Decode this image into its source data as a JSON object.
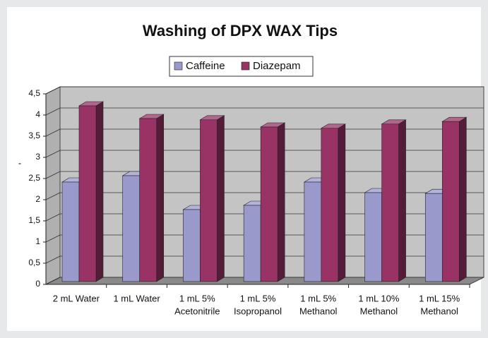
{
  "chart_data": {
    "type": "bar3d",
    "title": "Washing of DPX WAX Tips",
    "y_label": "-",
    "categories": [
      [
        "2 mL Water"
      ],
      [
        "1 mL Water"
      ],
      [
        "1 mL 5%",
        "Acetonitrile"
      ],
      [
        "1 mL 5%",
        "Isopropanol"
      ],
      [
        "1 mL 5%",
        "Methanol"
      ],
      [
        "1 mL 10%",
        "Methanol"
      ],
      [
        "1 mL 15%",
        "Methanol"
      ]
    ],
    "series": [
      {
        "name": "Caffeine",
        "color": "#9999cc",
        "values": [
          2.35,
          2.5,
          1.7,
          1.8,
          2.35,
          2.1,
          2.08
        ]
      },
      {
        "name": "Diazepam",
        "color": "#993366",
        "values": [
          4.15,
          3.85,
          3.82,
          3.65,
          3.62,
          3.72,
          3.78
        ]
      }
    ],
    "ylim": [
      0,
      4.5
    ],
    "yticks": [
      0,
      {
        "value": 0.5,
        "label": "0,5"
      },
      1,
      {
        "value": 1.5,
        "label": "1,5"
      },
      2,
      {
        "value": 2.5,
        "label": "2,5"
      },
      3,
      {
        "value": 3.5,
        "label": "3,5"
      },
      4,
      {
        "value": 4.5,
        "label": "4,5"
      }
    ],
    "grid": true
  }
}
